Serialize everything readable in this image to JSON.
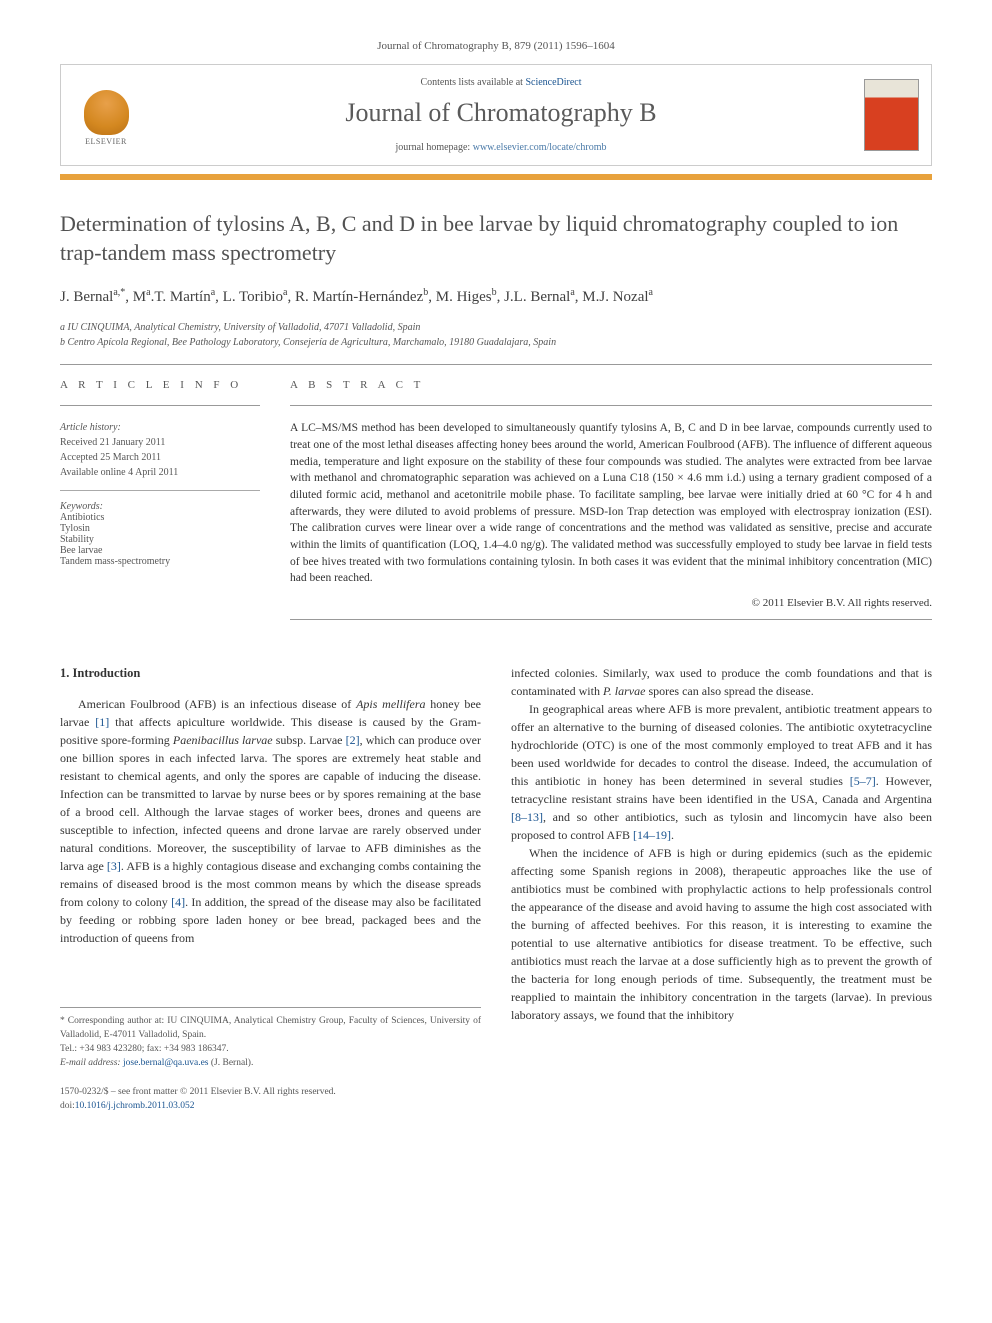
{
  "citation": "Journal of Chromatography B, 879 (2011) 1596–1604",
  "header": {
    "contents_prefix": "Contents lists available at ",
    "contents_link": "ScienceDirect",
    "journal_name": "Journal of Chromatography B",
    "homepage_prefix": "journal homepage: ",
    "homepage_url": "www.elsevier.com/locate/chromb",
    "publisher": "ELSEVIER"
  },
  "colors": {
    "orange_bar": "#e8a23c",
    "link": "#1a5490",
    "title": "#525252",
    "cover_red": "#d84020"
  },
  "title": "Determination of tylosins A, B, C and D in bee larvae by liquid chromatography coupled to ion trap-tandem mass spectrometry",
  "authors_html": "J. Bernal<sup>a,*</sup>, M<sup>a</sup>.T. Martín<sup>a</sup>, L. Toribio<sup>a</sup>, R. Martín-Hernández<sup>b</sup>, M. Higes<sup>b</sup>, J.L. Bernal<sup>a</sup>, M.J. Nozal<sup>a</sup>",
  "affiliations": [
    "a IU CINQUIMA, Analytical Chemistry, University of Valladolid, 47071 Valladolid, Spain",
    "b Centro Apícola Regional, Bee Pathology Laboratory, Consejería de Agricultura, Marchamalo, 19180 Guadalajara, Spain"
  ],
  "article_info": {
    "heading": "A R T I C L E   I N F O",
    "history_label": "Article history:",
    "history": [
      "Received 21 January 2011",
      "Accepted 25 March 2011",
      "Available online 4 April 2011"
    ],
    "keywords_label": "Keywords:",
    "keywords": [
      "Antibiotics",
      "Tylosin",
      "Stability",
      "Bee larvae",
      "Tandem mass-spectrometry"
    ]
  },
  "abstract": {
    "heading": "A B S T R A C T",
    "text": "A LC–MS/MS method has been developed to simultaneously quantify tylosins A, B, C and D in bee larvae, compounds currently used to treat one of the most lethal diseases affecting honey bees around the world, American Foulbrood (AFB). The influence of different aqueous media, temperature and light exposure on the stability of these four compounds was studied. The analytes were extracted from bee larvae with methanol and chromatographic separation was achieved on a Luna C18 (150 × 4.6 mm i.d.) using a ternary gradient composed of a diluted formic acid, methanol and acetonitrile mobile phase. To facilitate sampling, bee larvae were initially dried at 60 °C for 4 h and afterwards, they were diluted to avoid problems of pressure. MSD-Ion Trap detection was employed with electrospray ionization (ESI). The calibration curves were linear over a wide range of concentrations and the method was validated as sensitive, precise and accurate within the limits of quantification (LOQ, 1.4–4.0 ng/g). The validated method was successfully employed to study bee larvae in field tests of bee hives treated with two formulations containing tylosin. In both cases it was evident that the minimal inhibitory concentration (MIC) had been reached.",
    "copyright": "© 2011 Elsevier B.V. All rights reserved."
  },
  "introduction": {
    "heading": "1.  Introduction",
    "col1_p1": "American Foulbrood (AFB) is an infectious disease of Apis mellifera honey bee larvae [1] that affects apiculture worldwide. This disease is caused by the Gram-positive spore-forming Paenibacillus larvae subsp. Larvae [2], which can produce over one billion spores in each infected larva. The spores are extremely heat stable and resistant to chemical agents, and only the spores are capable of inducing the disease. Infection can be transmitted to larvae by nurse bees or by spores remaining at the base of a brood cell. Although the larvae stages of worker bees, drones and queens are susceptible to infection, infected queens and drone larvae are rarely observed under natural conditions. Moreover, the susceptibility of larvae to AFB diminishes as the larva age [3]. AFB is a highly contagious disease and exchanging combs containing the remains of diseased brood is the most common means by which the disease spreads from colony to colony [4]. In addition, the spread of the disease may also be facilitated by feeding or robbing spore laden honey or bee bread, packaged bees and the introduction of queens from",
    "col2_p1": "infected colonies. Similarly, wax used to produce the comb foundations and that is contaminated with P. larvae spores can also spread the disease.",
    "col2_p2": "In geographical areas where AFB is more prevalent, antibiotic treatment appears to offer an alternative to the burning of diseased colonies. The antibiotic oxytetracycline hydrochloride (OTC) is one of the most commonly employed to treat AFB and it has been used worldwide for decades to control the disease. Indeed, the accumulation of this antibiotic in honey has been determined in several studies [5–7]. However, tetracycline resistant strains have been identified in the USA, Canada and Argentina [8–13], and so other antibiotics, such as tylosin and lincomycin have also been proposed to control AFB [14–19].",
    "col2_p3": "When the incidence of AFB is high or during epidemics (such as the epidemic affecting some Spanish regions in 2008), therapeutic approaches like the use of antibiotics must be combined with prophylactic actions to help professionals control the appearance of the disease and avoid having to assume the high cost associated with the burning of affected beehives. For this reason, it is interesting to examine the potential to use alternative antibiotics for disease treatment. To be effective, such antibiotics must reach the larvae at a dose sufficiently high as to prevent the growth of the bacteria for long enough periods of time. Subsequently, the treatment must be reapplied to maintain the inhibitory concentration in the targets (larvae). In previous laboratory assays, we found that the inhibitory"
  },
  "footer": {
    "corresponding": "* Corresponding author at: IU CINQUIMA, Analytical Chemistry Group, Faculty of Sciences, University of Valladolid, E-47011 Valladolid, Spain.",
    "tel": "Tel.: +34 983 423280; fax: +34 983 186347.",
    "email_label": "E-mail address: ",
    "email": "jose.bernal@qa.uva.es",
    "email_suffix": " (J. Bernal).",
    "issn": "1570-0232/$ – see front matter © 2011 Elsevier B.V. All rights reserved.",
    "doi_label": "doi:",
    "doi": "10.1016/j.jchromb.2011.03.052"
  }
}
